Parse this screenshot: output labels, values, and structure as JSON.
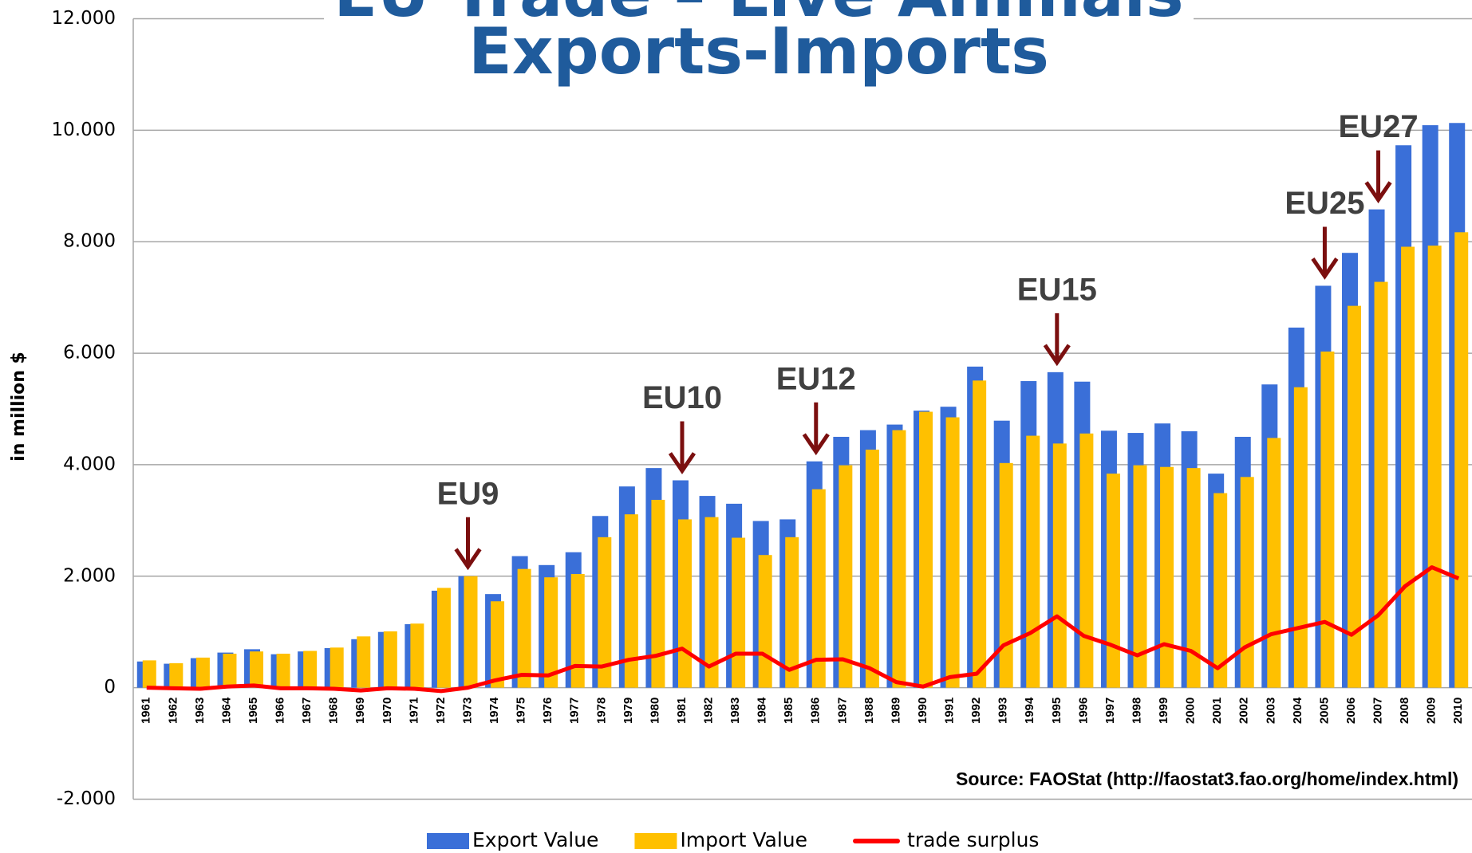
{
  "chart_data": {
    "type": "bar",
    "title": "EU Trade – Live Animals",
    "subtitle": "Exports-Imports",
    "y_label": "in million $",
    "source": "Source: FAOStat (http://faostat3.fao.org/home/index.html)",
    "categories": [
      "1961",
      "1962",
      "1963",
      "1964",
      "1965",
      "1966",
      "1967",
      "1968",
      "1969",
      "1970",
      "1971",
      "1972",
      "1973",
      "1974",
      "1975",
      "1976",
      "1977",
      "1978",
      "1979",
      "1980",
      "1981",
      "1982",
      "1983",
      "1984",
      "1985",
      "1986",
      "1987",
      "1988",
      "1989",
      "1990",
      "1991",
      "1992",
      "1993",
      "1994",
      "1995",
      "1996",
      "1997",
      "1998",
      "1999",
      "2000",
      "2001",
      "2002",
      "2003",
      "2004",
      "2005",
      "2006",
      "2007",
      "2008",
      "2009",
      "2010"
    ],
    "series": [
      {
        "name": "Export Value",
        "type": "bar",
        "color": "#3a6fd8",
        "values": [
          470,
          430,
          530,
          630,
          690,
          600,
          650,
          710,
          870,
          1000,
          1140,
          1740,
          2000,
          1680,
          2360,
          2200,
          2430,
          3080,
          3610,
          3940,
          3720,
          3440,
          3300,
          2990,
          3020,
          4060,
          4500,
          4620,
          4720,
          4970,
          5040,
          5760,
          4790,
          5500,
          5660,
          5490,
          4610,
          4570,
          4740,
          4600,
          3840,
          4500,
          5440,
          6460,
          7210,
          7800,
          8580,
          9730,
          10090,
          10130
        ]
      },
      {
        "name": "Import Value",
        "type": "bar",
        "color": "#ffc000",
        "values": [
          490,
          440,
          540,
          610,
          650,
          610,
          660,
          720,
          920,
          1010,
          1150,
          1790,
          2000,
          1550,
          2130,
          1980,
          2040,
          2700,
          3110,
          3370,
          3020,
          3060,
          2690,
          2380,
          2700,
          3560,
          3990,
          4270,
          4620,
          4950,
          4850,
          5510,
          4030,
          4520,
          4380,
          4560,
          3840,
          3990,
          3960,
          3940,
          3490,
          3780,
          4480,
          5390,
          6030,
          6850,
          7280,
          7910,
          7930,
          8170
        ]
      },
      {
        "name": "trade surplus",
        "type": "line",
        "color": "#ff0000",
        "values": [
          0,
          -10,
          -20,
          20,
          40,
          -10,
          -10,
          -20,
          -50,
          -10,
          -20,
          -60,
          0,
          130,
          230,
          220,
          390,
          380,
          500,
          570,
          700,
          380,
          610,
          610,
          320,
          500,
          510,
          350,
          100,
          20,
          190,
          250,
          760,
          980,
          1280,
          930,
          770,
          580,
          780,
          660,
          350,
          720,
          960,
          1070,
          1180,
          950,
          1300,
          1820,
          2160,
          1960
        ]
      }
    ],
    "annotations": [
      {
        "text": "EU9",
        "category": "1973"
      },
      {
        "text": "EU10",
        "category": "1981"
      },
      {
        "text": "EU12",
        "category": "1986"
      },
      {
        "text": "EU15",
        "category": "1995"
      },
      {
        "text": "EU25",
        "category": "2005"
      },
      {
        "text": "EU27",
        "category": "2007"
      }
    ],
    "annotation_color": "#7b0f0f",
    "ylim": [
      -2000,
      12000
    ],
    "yticks": [
      {
        "value": -2000,
        "label": "-2.000"
      },
      0,
      {
        "value": 2000,
        "label": "2.000"
      },
      {
        "value": 4000,
        "label": "4.000"
      },
      {
        "value": 6000,
        "label": "6.000"
      },
      {
        "value": 8000,
        "label": "8.000"
      },
      {
        "value": 10000,
        "label": "10.000"
      },
      {
        "value": 12000,
        "label": "12.000"
      }
    ],
    "grid": true,
    "legend": "bottom"
  }
}
